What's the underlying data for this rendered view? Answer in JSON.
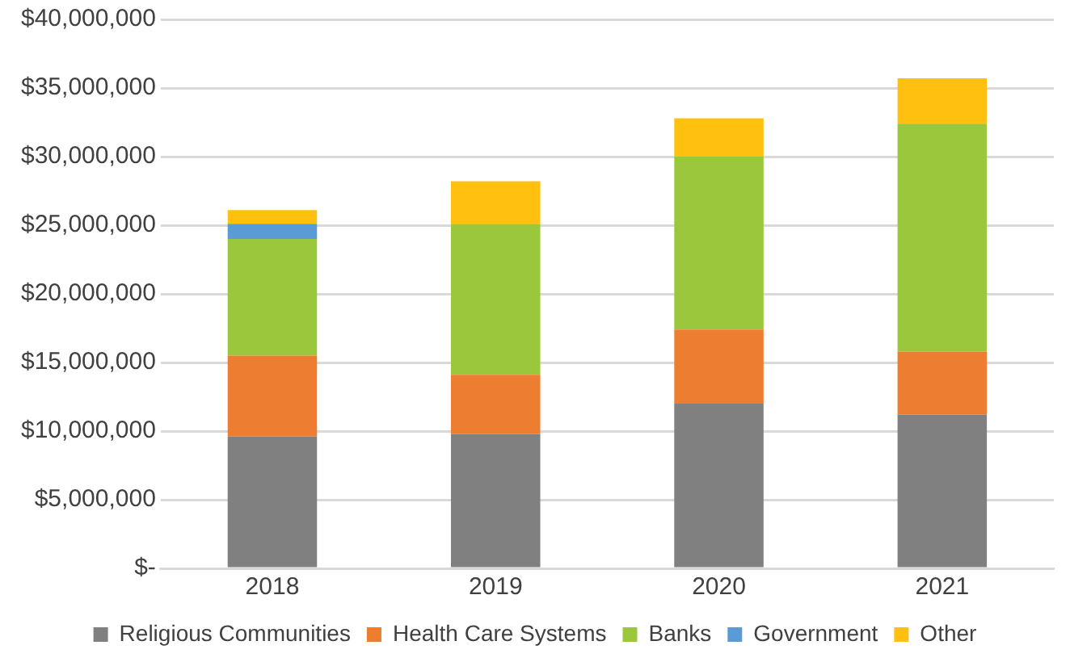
{
  "chart_data": {
    "type": "bar",
    "stacked": true,
    "categories": [
      "2018",
      "2019",
      "2020",
      "2021"
    ],
    "series": [
      {
        "name": "Religious Communities",
        "color": "#808080",
        "values": [
          9600000,
          9800000,
          12000000,
          11200000
        ]
      },
      {
        "name": "Health Care Systems",
        "color": "#ed7d31",
        "values": [
          5900000,
          4300000,
          5400000,
          4600000
        ]
      },
      {
        "name": "Banks",
        "color": "#9bc73c",
        "values": [
          8500000,
          11000000,
          12600000,
          16600000
        ]
      },
      {
        "name": "Government",
        "color": "#5b9bd5",
        "values": [
          1100000,
          0,
          0,
          0
        ]
      },
      {
        "name": "Other",
        "color": "#ffc010",
        "values": [
          1000000,
          3100000,
          2800000,
          3300000
        ]
      }
    ],
    "ylim": [
      0,
      40000000
    ],
    "yticks": [
      {
        "value": 0,
        "label": "$-"
      },
      {
        "value": 5000000,
        "label": "$5,000,000"
      },
      {
        "value": 10000000,
        "label": "$10,000,000"
      },
      {
        "value": 15000000,
        "label": "$15,000,000"
      },
      {
        "value": 20000000,
        "label": "$20,000,000"
      },
      {
        "value": 25000000,
        "label": "$25,000,000"
      },
      {
        "value": 30000000,
        "label": "$30,000,000"
      },
      {
        "value": 35000000,
        "label": "$35,000,000"
      },
      {
        "value": 40000000,
        "label": "$40,000,000"
      }
    ],
    "grid": "y",
    "legend": "bottom"
  }
}
